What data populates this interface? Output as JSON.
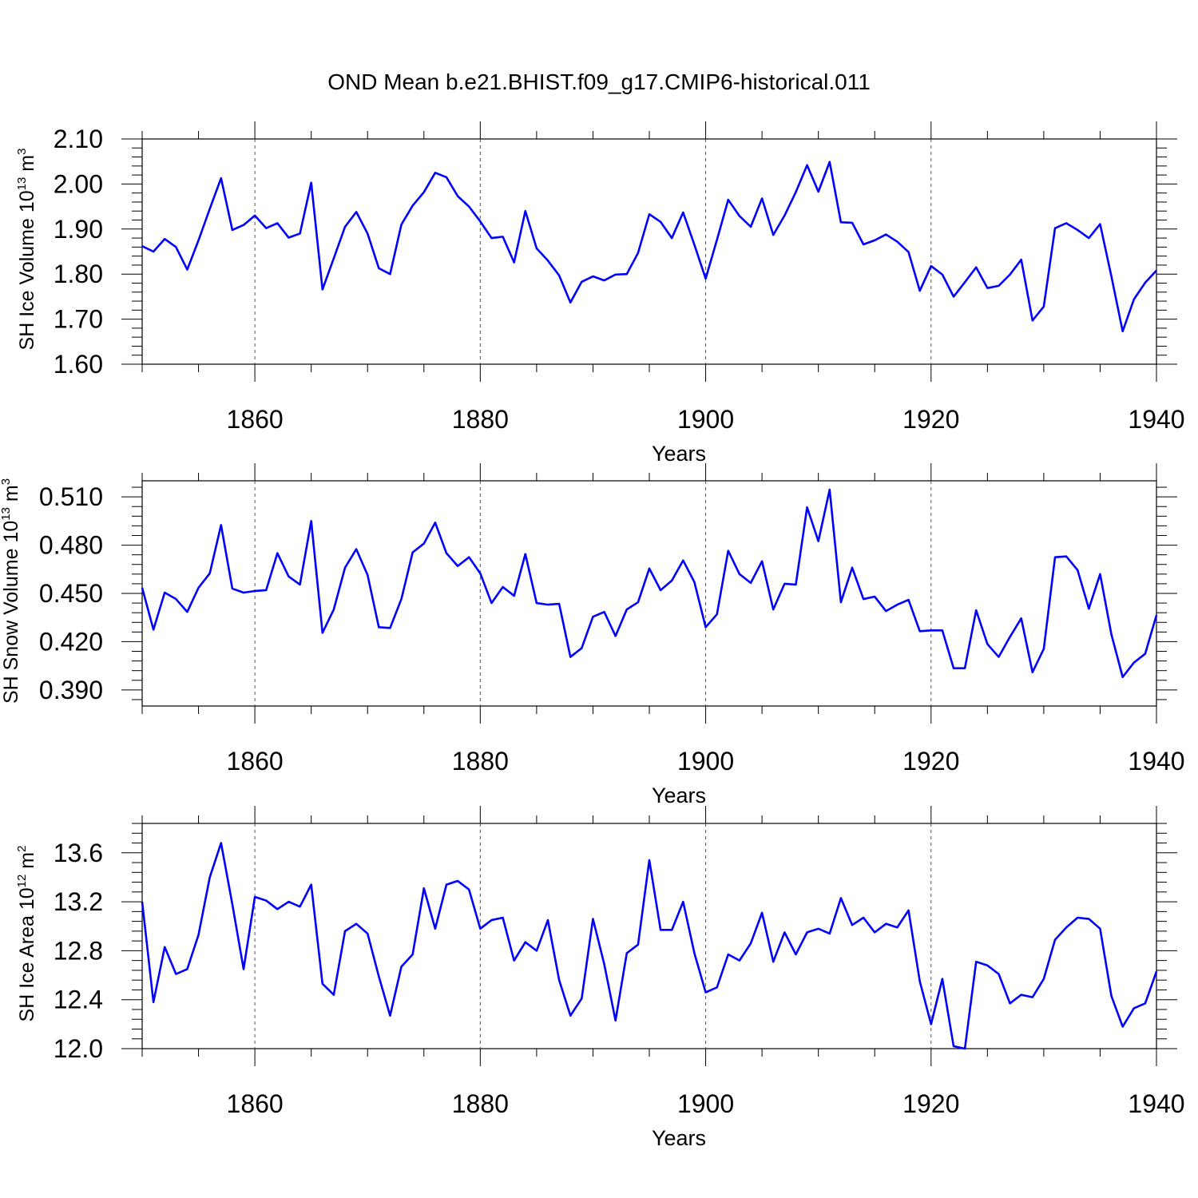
{
  "title": "OND Mean b.e21.BHIST.f09_g17.CMIP6-historical.011",
  "line_color": "#0000ff",
  "chart_data": [
    {
      "type": "line",
      "xlabel": "Years",
      "ylabel": {
        "text": "SH Ice Volume 10",
        "exponent": "13",
        "unit": "m",
        "unit_exponent": "3"
      },
      "xlim": [
        1850,
        1940
      ],
      "ylim": [
        1.6,
        2.1
      ],
      "xticks": [
        "1860",
        "1880",
        "1900",
        "1920",
        "1940"
      ],
      "yticks": [
        "1.60",
        "1.70",
        "1.80",
        "1.90",
        "2.00",
        "2.10"
      ],
      "x_start": 1850,
      "values": [
        1.862,
        1.85,
        1.878,
        1.86,
        1.81,
        1.875,
        1.945,
        2.013,
        1.898,
        1.909,
        1.93,
        1.902,
        1.913,
        1.881,
        1.89,
        2.003,
        1.766,
        1.835,
        1.905,
        1.938,
        1.89,
        1.813,
        1.8,
        1.91,
        1.952,
        1.982,
        2.025,
        2.015,
        1.973,
        1.95,
        1.917,
        1.88,
        1.883,
        1.826,
        1.94,
        1.857,
        1.83,
        1.797,
        1.737,
        1.783,
        1.795,
        1.786,
        1.799,
        1.8,
        1.847,
        1.933,
        1.916,
        1.88,
        1.937,
        1.865,
        1.79,
        1.876,
        1.965,
        1.929,
        1.905,
        1.968,
        1.887,
        1.93,
        1.982,
        2.042,
        1.983,
        2.049,
        1.915,
        1.914,
        1.866,
        1.875,
        1.888,
        1.872,
        1.849,
        1.763,
        1.818,
        1.799,
        1.75,
        1.782,
        1.815,
        1.769,
        1.774,
        1.799,
        1.832,
        1.697,
        1.728,
        1.902,
        1.913,
        1.898,
        1.88,
        1.911,
        1.795,
        1.673,
        1.744,
        1.781,
        1.808
      ],
      "grid": "dashed vertical lines at major x ticks"
    },
    {
      "type": "line",
      "xlabel": "Years",
      "ylabel": {
        "text": "SH Snow Volume 10",
        "exponent": "13",
        "unit": "m",
        "unit_exponent": "3"
      },
      "xlim": [
        1850,
        1940
      ],
      "ylim": [
        0.38,
        0.52
      ],
      "xticks": [
        "1860",
        "1880",
        "1900",
        "1920",
        "1940"
      ],
      "yticks": [
        "0.390",
        "0.420",
        "0.450",
        "0.480",
        "0.510"
      ],
      "x_start": 1850,
      "values": [
        0.4535,
        0.4275,
        0.4505,
        0.4465,
        0.4385,
        0.4535,
        0.4625,
        0.4925,
        0.453,
        0.4505,
        0.4515,
        0.452,
        0.475,
        0.4605,
        0.4555,
        0.495,
        0.4255,
        0.44,
        0.466,
        0.4775,
        0.4615,
        0.429,
        0.4285,
        0.4465,
        0.4755,
        0.481,
        0.494,
        0.475,
        0.467,
        0.4725,
        0.4625,
        0.444,
        0.454,
        0.4485,
        0.4745,
        0.444,
        0.443,
        0.4435,
        0.4105,
        0.416,
        0.4355,
        0.4385,
        0.4235,
        0.44,
        0.4445,
        0.4655,
        0.452,
        0.458,
        0.4705,
        0.457,
        0.429,
        0.437,
        0.4765,
        0.462,
        0.4565,
        0.47,
        0.44,
        0.456,
        0.4555,
        0.5035,
        0.4825,
        0.5145,
        0.4445,
        0.466,
        0.4465,
        0.448,
        0.439,
        0.443,
        0.446,
        0.4265,
        0.427,
        0.427,
        0.4035,
        0.4035,
        0.4395,
        0.4185,
        0.4105,
        0.423,
        0.4345,
        0.401,
        0.4155,
        0.4725,
        0.473,
        0.4645,
        0.4405,
        0.462,
        0.4245,
        0.398,
        0.407,
        0.4125,
        0.4365
      ],
      "grid": "dashed vertical lines at major x ticks"
    },
    {
      "type": "line",
      "xlabel": "Years",
      "ylabel": {
        "text": "SH Ice Area 10",
        "exponent": "12",
        "unit": "m",
        "unit_exponent": "2"
      },
      "xlim": [
        1850,
        1940
      ],
      "ylim": [
        12.0,
        13.84
      ],
      "xticks": [
        "1860",
        "1880",
        "1900",
        "1920",
        "1940"
      ],
      "yticks": [
        "12.0",
        "12.4",
        "12.8",
        "13.2",
        "13.6"
      ],
      "x_start": 1850,
      "values": [
        13.2,
        12.38,
        12.83,
        12.61,
        12.65,
        12.93,
        13.4,
        13.68,
        13.18,
        12.65,
        13.24,
        13.21,
        13.14,
        13.2,
        13.16,
        13.34,
        12.53,
        12.44,
        12.96,
        13.02,
        12.94,
        12.59,
        12.27,
        12.67,
        12.77,
        13.31,
        12.98,
        13.34,
        13.37,
        13.3,
        12.98,
        13.05,
        13.07,
        12.72,
        12.87,
        12.8,
        13.05,
        12.56,
        12.27,
        12.41,
        13.06,
        12.69,
        12.23,
        12.78,
        12.85,
        13.54,
        12.97,
        12.97,
        13.2,
        12.78,
        12.46,
        12.5,
        12.77,
        12.72,
        12.86,
        13.11,
        12.71,
        12.95,
        12.77,
        12.95,
        12.98,
        12.94,
        13.23,
        13.01,
        13.07,
        12.95,
        13.02,
        12.99,
        13.13,
        12.55,
        12.2,
        12.57,
        12.02,
        12.0,
        12.71,
        12.68,
        12.61,
        12.37,
        12.44,
        12.42,
        12.57,
        12.89,
        12.99,
        13.07,
        13.06,
        12.98,
        12.43,
        12.18,
        12.33,
        12.37,
        12.63
      ],
      "grid": "dashed vertical lines at major x ticks"
    }
  ]
}
